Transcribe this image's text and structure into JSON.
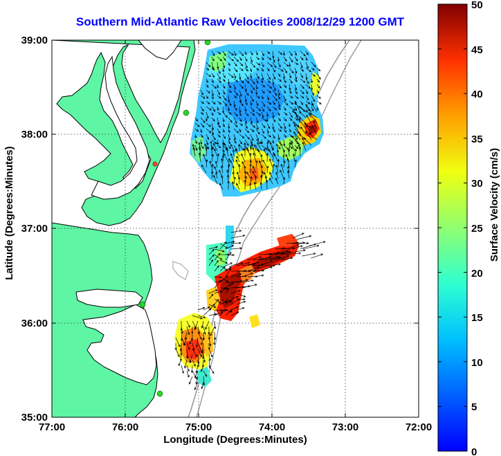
{
  "title": "Southern Mid-Atlantic Raw Velocities 2008/12/29 1200 GMT",
  "xlabel": "Longitude (Degrees:Minutes)",
  "ylabel": "Latitude (Degrees:Minutes)",
  "x_ticks": [
    "77:00",
    "76:00",
    "75:00",
    "74:00",
    "73:00",
    "72:00"
  ],
  "y_ticks": [
    "39:00",
    "38:00",
    "37:00",
    "36:00",
    "35:00"
  ],
  "colorbar": {
    "label": "Surface Velocity (cm/s)",
    "ticks": [
      "50",
      "45",
      "40",
      "35",
      "30",
      "25",
      "20",
      "15",
      "10",
      "5",
      "0"
    ],
    "range": [
      0,
      50
    ],
    "colormap": "jet"
  },
  "map": {
    "lon_range": [
      -77,
      -72
    ],
    "lat_range": [
      35,
      39
    ],
    "land_color": "#5ef5a4",
    "grid": "dotted",
    "regions": [
      {
        "name": "northern",
        "lon": [
          -75.15,
          -73.35
        ],
        "lat": [
          37.4,
          38.95
        ],
        "dominant_speed_cm_s": 8,
        "max_speed_cm_s": 45
      },
      {
        "name": "southern",
        "lon": [
          -75.45,
          -73.3
        ],
        "lat": [
          35.5,
          36.8
        ],
        "dominant_speed_cm_s": 38,
        "max_speed_cm_s": 48
      }
    ]
  },
  "colors": {
    "title": "#0000ff",
    "land": "#5ef5a4",
    "coast": "#000000",
    "bathymetry": "#999999",
    "station": "#22dd22"
  }
}
